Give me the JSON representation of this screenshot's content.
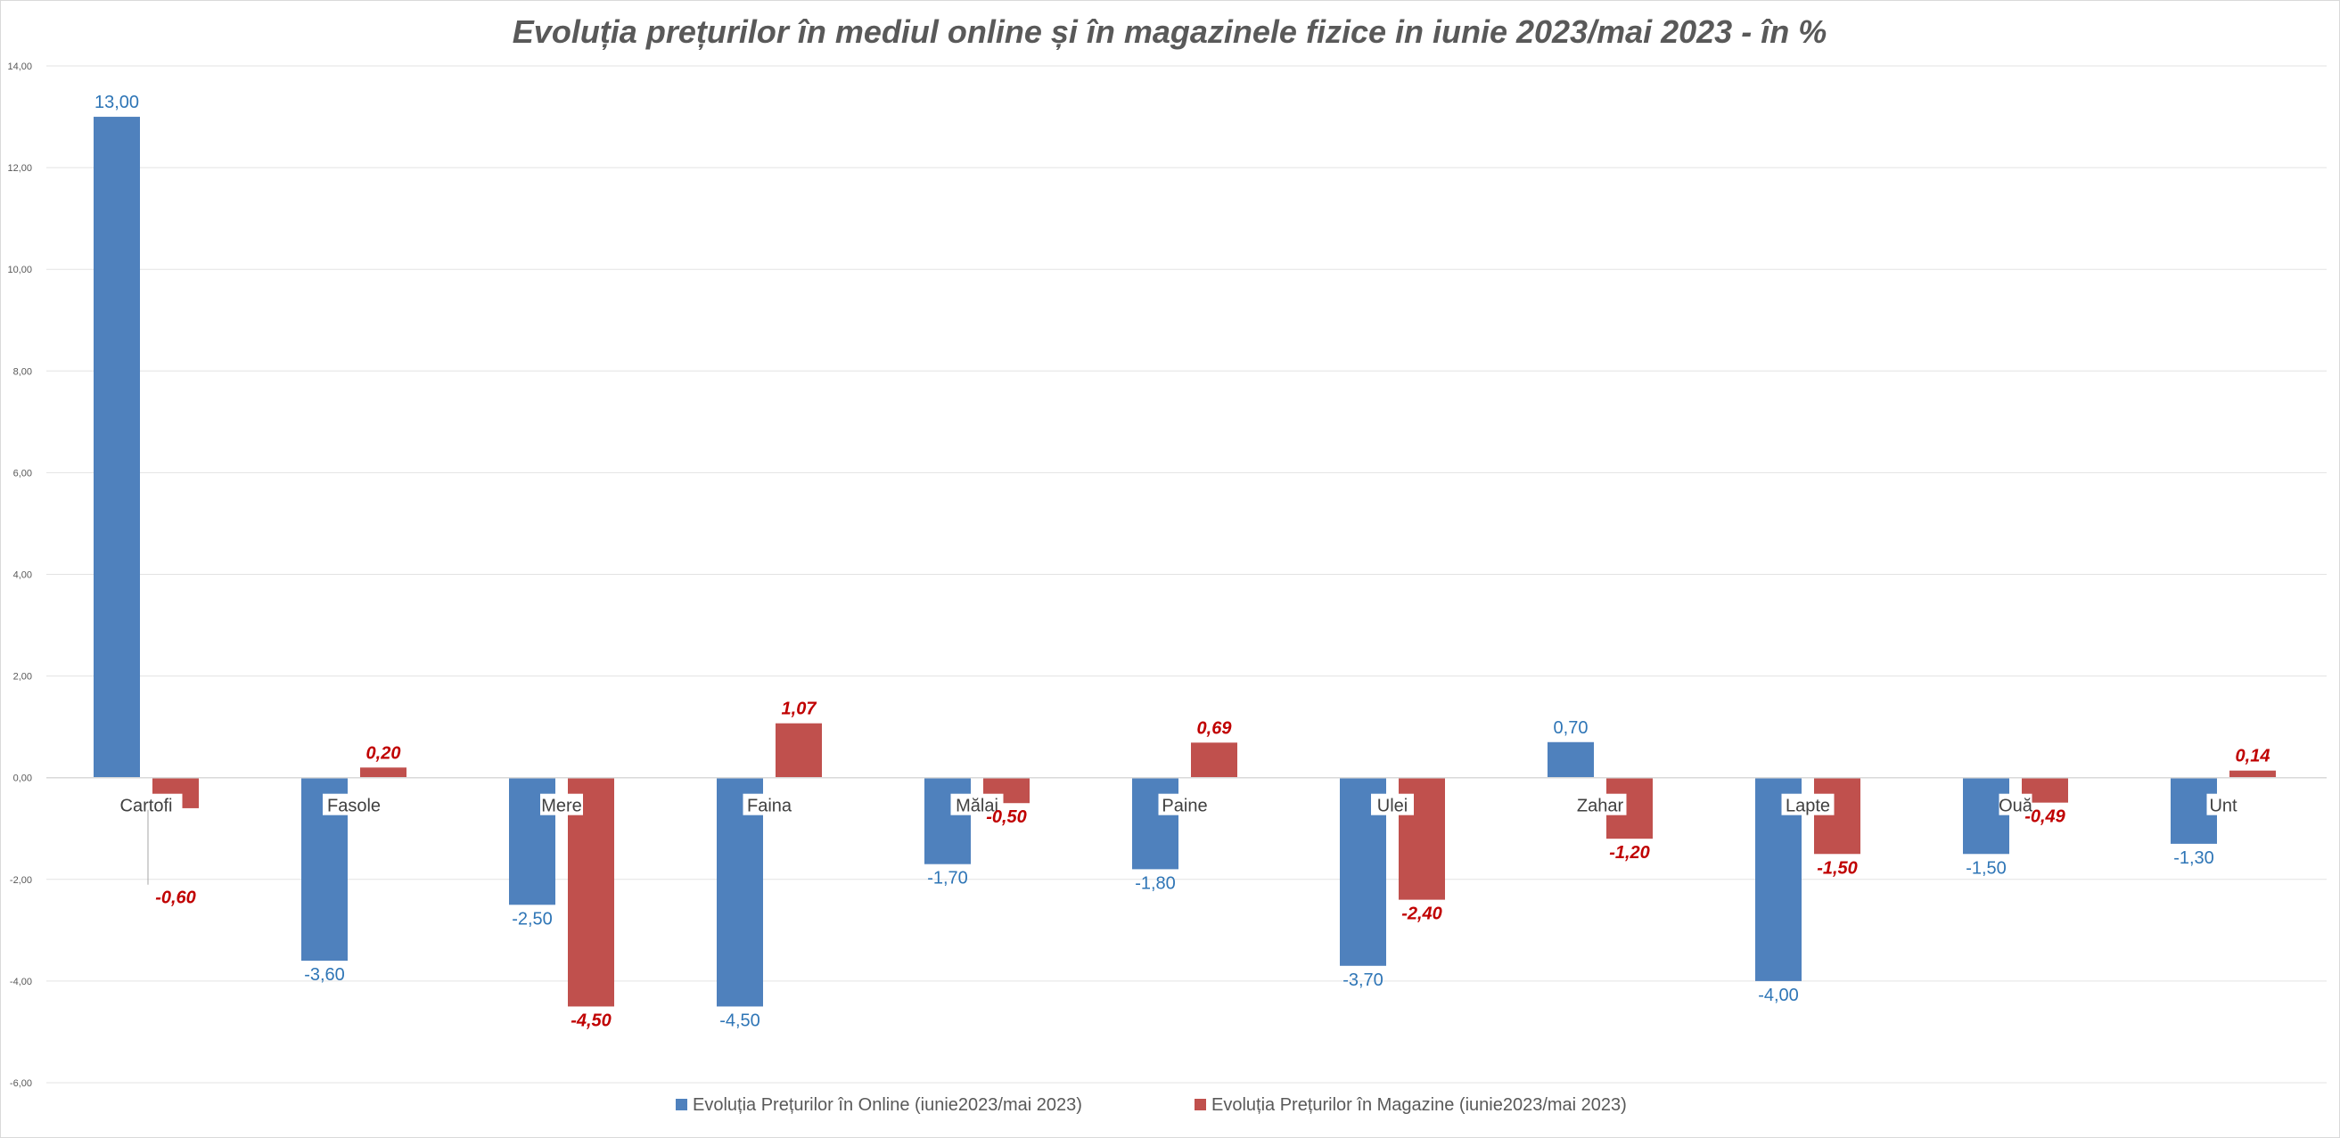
{
  "chart_data": {
    "type": "bar",
    "title": "Evoluția prețurilor în mediul online și în magazinele fizice in iunie 2023/mai 2023 - în %",
    "xlabel": "",
    "ylabel": "",
    "ylim": [
      -6,
      14
    ],
    "yticks": [
      14,
      12,
      10,
      8,
      6,
      4,
      2,
      0,
      -2,
      -4,
      -6
    ],
    "ytick_labels": [
      "14,00",
      "12,00",
      "10,00",
      "8,00",
      "6,00",
      "4,00",
      "2,00",
      "0,00",
      "-2,00",
      "-4,00",
      "-6,00"
    ],
    "grid": true,
    "legend_position": "bottom",
    "categories": [
      "Cartofi",
      "Fasole",
      "Mere",
      "Faina",
      "Mălai",
      "Paine",
      "Ulei",
      "Zahar",
      "Lapte",
      "Ouă",
      "Unt"
    ],
    "series": [
      {
        "name": "Evoluția Prețurilor în Online (iunie2023/mai 2023)",
        "color": "#4f81bd",
        "label_color": "#2e75b6",
        "values": [
          13.0,
          -3.6,
          -2.5,
          -4.5,
          -1.7,
          -1.8,
          -3.7,
          0.7,
          -4.0,
          -1.5,
          -1.3
        ],
        "labels": [
          "13,00",
          "-3,60",
          "-2,50",
          "-4,50",
          "-1,70",
          "-1,80",
          "-3,70",
          "0,70",
          "-4,00",
          "-1,50",
          "-1,30"
        ]
      },
      {
        "name": "Evoluția Prețurilor în Magazine (iunie2023/mai 2023)",
        "color": "#c0504d",
        "label_color": "#c00000",
        "values": [
          -0.6,
          0.2,
          -4.5,
          1.07,
          -0.5,
          0.69,
          -2.4,
          -1.2,
          -1.5,
          -0.49,
          0.14
        ],
        "labels": [
          "-0,60",
          "0,20",
          "-4,50",
          "1,07",
          "-0,50",
          "0,69",
          "-2,40",
          "-1,20",
          "-1,50",
          "-0,49",
          "0,14"
        ]
      }
    ]
  }
}
